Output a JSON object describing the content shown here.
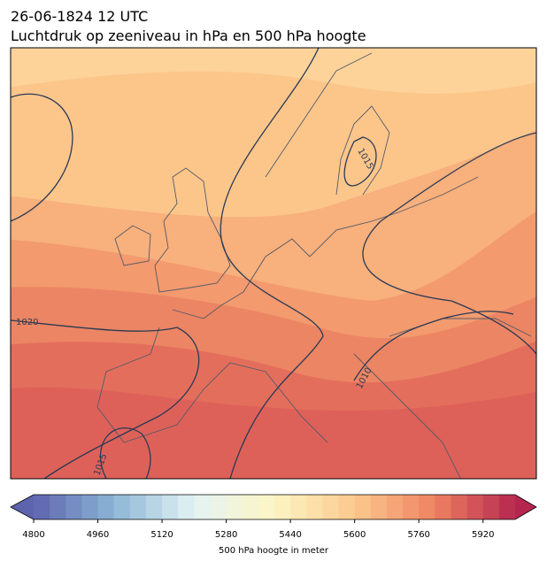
{
  "header": {
    "title": "26-06-1824 12 UTC",
    "subtitle": "Luchtdruk op zeeniveau in hPa en 500 hPa hoogte"
  },
  "contour_labels": [
    "1020",
    "1015",
    "1010",
    "1015"
  ],
  "colorbar": {
    "range": [
      4800,
      6000
    ],
    "step": 40,
    "ticks": [
      4800,
      4960,
      5120,
      5280,
      5440,
      5600,
      5760,
      5920
    ],
    "label": "500 hPa hoogte in meter",
    "colors": [
      "#5e63ae",
      "#8cb6d6",
      "#e3f3f4",
      "#fcf6c4",
      "#fbc88d",
      "#ee8262",
      "#b5264f"
    ]
  }
}
